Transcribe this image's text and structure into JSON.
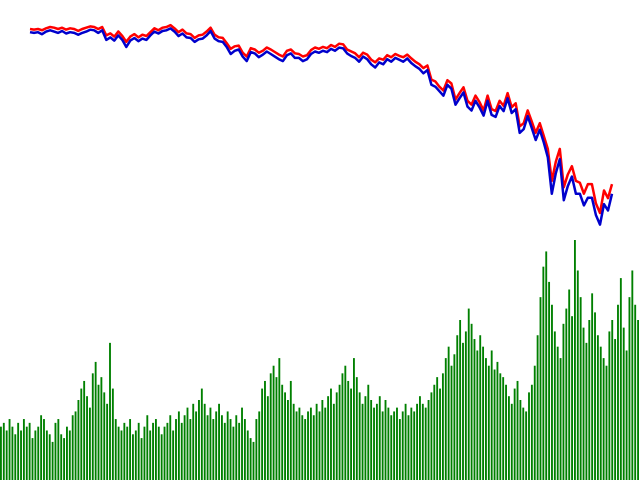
{
  "chart_data": [
    {
      "type": "line",
      "x": [
        0,
        4,
        8,
        12,
        16,
        20,
        24,
        28,
        32,
        36,
        40,
        44,
        48,
        52,
        56,
        60,
        64,
        68,
        72,
        76,
        80,
        84,
        88,
        92,
        96,
        100,
        104,
        108,
        112,
        116,
        120,
        124,
        128,
        132,
        136,
        140,
        144,
        148,
        152,
        156,
        160,
        164,
        168,
        172,
        176,
        180,
        184,
        188,
        192,
        196,
        200,
        204,
        208,
        212,
        216,
        220,
        224,
        228,
        232,
        236,
        240,
        244,
        248,
        252,
        256,
        260,
        264,
        268,
        272,
        276,
        280,
        284,
        288,
        292,
        296,
        300,
        304,
        308,
        312,
        316,
        320,
        324,
        328,
        332,
        336,
        340,
        344,
        348,
        352,
        356,
        360,
        364,
        368,
        372,
        376,
        380,
        384,
        388,
        392,
        396,
        400,
        404,
        408,
        412,
        416,
        420,
        424,
        428,
        432,
        436,
        440,
        444,
        448,
        452,
        456,
        460,
        464,
        468,
        472,
        476,
        480,
        484,
        488,
        492,
        496,
        500,
        504,
        508,
        512,
        516,
        520,
        524,
        528,
        532,
        536,
        540,
        544,
        548,
        552,
        556,
        560,
        564,
        568,
        572,
        576,
        580
      ],
      "series": [
        {
          "color": "#ff0000",
          "values": [
            0.92,
            0.91,
            0.92,
            0.9,
            0.93,
            0.95,
            0.94,
            0.92,
            0.94,
            0.91,
            0.93,
            0.92,
            0.89,
            0.92,
            0.94,
            0.96,
            0.95,
            0.92,
            0.95,
            0.82,
            0.85,
            0.8,
            0.88,
            0.81,
            0.72,
            0.8,
            0.84,
            0.79,
            0.83,
            0.81,
            0.87,
            0.93,
            0.9,
            0.94,
            0.95,
            0.98,
            0.93,
            0.87,
            0.91,
            0.85,
            0.84,
            0.78,
            0.82,
            0.83,
            0.88,
            0.94,
            0.83,
            0.79,
            0.78,
            0.7,
            0.61,
            0.65,
            0.66,
            0.55,
            0.49,
            0.62,
            0.6,
            0.55,
            0.58,
            0.63,
            0.6,
            0.56,
            0.52,
            0.49,
            0.58,
            0.6,
            0.54,
            0.53,
            0.49,
            0.51,
            0.59,
            0.63,
            0.61,
            0.64,
            0.62,
            0.67,
            0.64,
            0.69,
            0.68,
            0.6,
            0.57,
            0.54,
            0.48,
            0.55,
            0.52,
            0.44,
            0.4,
            0.46,
            0.44,
            0.51,
            0.48,
            0.53,
            0.5,
            0.48,
            0.52,
            0.46,
            0.41,
            0.37,
            0.31,
            0.35,
            0.13,
            0.1,
            0.02,
            -0.04,
            0.12,
            0.07,
            -0.18,
            -0.08,
            0.01,
            -0.2,
            -0.26,
            -0.12,
            -0.22,
            -0.35,
            -0.12,
            -0.33,
            -0.36,
            -0.2,
            -0.28,
            -0.08,
            -0.3,
            -0.24,
            -0.6,
            -0.55,
            -0.35,
            -0.52,
            -0.7,
            -0.55,
            -0.75,
            -0.95,
            -1.45,
            -1.15,
            -0.95,
            -1.55,
            -1.35,
            -1.22,
            -1.45,
            -1.48,
            -1.65,
            -1.5,
            -1.5,
            -1.8,
            -1.95,
            -1.6,
            -1.72,
            -1.5
          ]
        },
        {
          "color": "#0000cc",
          "values": [
            0.9,
            0.89,
            0.9,
            0.87,
            0.91,
            0.93,
            0.91,
            0.89,
            0.92,
            0.88,
            0.9,
            0.89,
            0.86,
            0.89,
            0.91,
            0.94,
            0.93,
            0.89,
            0.93,
            0.78,
            0.82,
            0.77,
            0.85,
            0.78,
            0.67,
            0.77,
            0.81,
            0.76,
            0.8,
            0.78,
            0.85,
            0.91,
            0.88,
            0.92,
            0.93,
            0.96,
            0.91,
            0.84,
            0.88,
            0.82,
            0.81,
            0.75,
            0.79,
            0.8,
            0.85,
            0.92,
            0.8,
            0.76,
            0.75,
            0.67,
            0.56,
            0.61,
            0.63,
            0.52,
            0.45,
            0.59,
            0.57,
            0.51,
            0.55,
            0.6,
            0.56,
            0.52,
            0.48,
            0.45,
            0.54,
            0.57,
            0.5,
            0.5,
            0.45,
            0.48,
            0.56,
            0.6,
            0.58,
            0.61,
            0.59,
            0.64,
            0.61,
            0.66,
            0.65,
            0.57,
            0.53,
            0.5,
            0.44,
            0.52,
            0.48,
            0.4,
            0.35,
            0.43,
            0.4,
            0.48,
            0.44,
            0.5,
            0.47,
            0.44,
            0.49,
            0.42,
            0.37,
            0.33,
            0.26,
            0.31,
            0.08,
            0.05,
            -0.02,
            -0.09,
            0.08,
            0.02,
            -0.23,
            -0.13,
            -0.04,
            -0.26,
            -0.32,
            -0.17,
            -0.27,
            -0.4,
            -0.17,
            -0.39,
            -0.42,
            -0.25,
            -0.33,
            -0.13,
            -0.36,
            -0.3,
            -0.67,
            -0.61,
            -0.41,
            -0.59,
            -0.78,
            -0.62,
            -0.82,
            -1.05,
            -1.62,
            -1.3,
            -1.08,
            -1.72,
            -1.5,
            -1.35,
            -1.62,
            -1.62,
            -1.8,
            -1.68,
            -1.68,
            -1.95,
            -2.1,
            -1.78,
            -1.88,
            -1.62
          ]
        }
      ],
      "ylim": [
        -2.2,
        1.2
      ],
      "grid": false
    },
    {
      "type": "bar",
      "color": "#008000",
      "values": [
        1.4,
        1.5,
        1.3,
        1.6,
        1.4,
        1.2,
        1.5,
        1.3,
        1.6,
        1.4,
        1.5,
        1.1,
        1.3,
        1.4,
        1.7,
        1.6,
        1.3,
        1.2,
        1.0,
        1.5,
        1.6,
        1.2,
        1.1,
        1.4,
        1.3,
        1.7,
        1.8,
        2.1,
        2.4,
        2.6,
        2.2,
        1.9,
        2.8,
        3.1,
        2.5,
        2.7,
        2.3,
        2.0,
        3.6,
        2.4,
        1.6,
        1.4,
        1.3,
        1.5,
        1.4,
        1.6,
        1.2,
        1.3,
        1.5,
        1.1,
        1.4,
        1.7,
        1.3,
        1.5,
        1.6,
        1.4,
        1.2,
        1.4,
        1.5,
        1.7,
        1.3,
        1.6,
        1.8,
        1.5,
        1.7,
        1.9,
        1.6,
        2.0,
        1.8,
        2.1,
        2.4,
        2.0,
        1.7,
        1.9,
        1.6,
        1.8,
        2.0,
        1.7,
        1.5,
        1.8,
        1.6,
        1.4,
        1.7,
        1.5,
        1.9,
        1.6,
        1.3,
        1.1,
        1.0,
        1.6,
        1.8,
        2.4,
        2.6,
        2.2,
        2.8,
        3.0,
        2.7,
        3.2,
        2.5,
        2.3,
        2.1,
        2.6,
        2.0,
        1.8,
        1.9,
        1.7,
        1.6,
        1.8,
        1.9,
        1.7,
        2.0,
        1.8,
        2.1,
        1.9,
        2.2,
        2.4,
        2.0,
        2.3,
        2.5,
        2.8,
        3.0,
        2.6,
        2.4,
        3.2,
        2.7,
        2.3,
        2.0,
        2.2,
        2.5,
        2.1,
        1.9,
        2.0,
        2.2,
        1.8,
        2.1,
        1.9,
        1.7,
        1.8,
        1.9,
        1.6,
        1.8,
        2.0,
        1.7,
        1.9,
        1.8,
        2.0,
        2.2,
        2.0,
        1.9,
        2.1,
        2.3,
        2.5,
        2.7,
        2.4,
        2.8,
        3.2,
        3.5,
        3.0,
        3.3,
        3.8,
        4.2,
        3.6,
        3.9,
        4.5,
        4.1,
        3.7,
        3.4,
        3.8,
        3.5,
        3.2,
        3.0,
        3.4,
        2.9,
        3.1,
        2.8,
        2.7,
        2.5,
        2.2,
        2.0,
        2.4,
        2.6,
        2.1,
        1.9,
        1.8,
        2.3,
        2.5,
        3.0,
        3.8,
        4.8,
        5.6,
        6.0,
        5.2,
        4.6,
        3.9,
        3.5,
        3.2,
        4.1,
        4.5,
        5.0,
        4.3,
        6.3,
        5.5,
        4.8,
        4.0,
        3.6,
        4.2,
        4.9,
        4.4,
        3.8,
        3.5,
        3.2,
        3.0,
        3.9,
        4.2,
        3.7,
        4.6,
        5.3,
        4.0,
        3.4,
        4.8,
        5.5,
        4.6,
        4.2
      ]
    }
  ]
}
